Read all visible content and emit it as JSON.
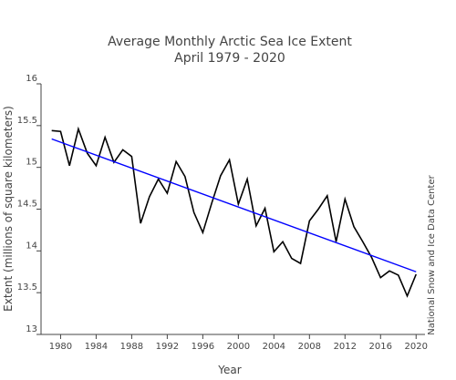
{
  "chart_data": {
    "type": "line",
    "title": "Average Monthly Arctic Sea Ice Extent",
    "subtitle": "April 1979 - 2020",
    "xlabel": "Year",
    "ylabel": "Extent (millions of square kilometers)",
    "credit": "National Snow and Ice Data Center",
    "xlim": [
      1977.8,
      2021.0
    ],
    "ylim": [
      13,
      16
    ],
    "xticks": [
      1980,
      1984,
      1988,
      1992,
      1996,
      2000,
      2004,
      2008,
      2012,
      2016,
      2020
    ],
    "yticks": [
      13,
      13.5,
      14,
      14.5,
      15,
      15.5,
      16
    ],
    "ytick_labels": [
      "13",
      "13.5",
      "14",
      "14.5",
      "15",
      "15.5",
      "16"
    ],
    "grid": false,
    "series": [
      {
        "color": "#000000",
        "x": [
          1979,
          1980,
          1981,
          1982,
          1983,
          1984,
          1985,
          1986,
          1987,
          1988,
          1989,
          1990,
          1991,
          1992,
          1993,
          1994,
          1995,
          1996,
          1997,
          1998,
          1999,
          2000,
          2001,
          2002,
          2003,
          2004,
          2005,
          2006,
          2007,
          2008,
          2009,
          2010,
          2011,
          2012,
          2013,
          2014,
          2015,
          2016,
          2017,
          2018,
          2019,
          2020
        ],
        "y": [
          15.44,
          15.43,
          15.02,
          15.46,
          15.17,
          15.02,
          15.36,
          15.06,
          15.21,
          15.13,
          14.33,
          14.65,
          14.86,
          14.69,
          15.07,
          14.89,
          14.46,
          14.22,
          14.57,
          14.9,
          15.09,
          14.56,
          14.86,
          14.3,
          14.51,
          13.99,
          14.11,
          13.91,
          13.85,
          14.36,
          14.5,
          14.66,
          14.11,
          14.62,
          14.29,
          14.11,
          13.92,
          13.68,
          13.76,
          13.71,
          13.46,
          13.72
        ]
      },
      {
        "color": "#0000ff",
        "x": [
          1979,
          2020
        ],
        "y": [
          15.34,
          13.75
        ]
      }
    ]
  }
}
